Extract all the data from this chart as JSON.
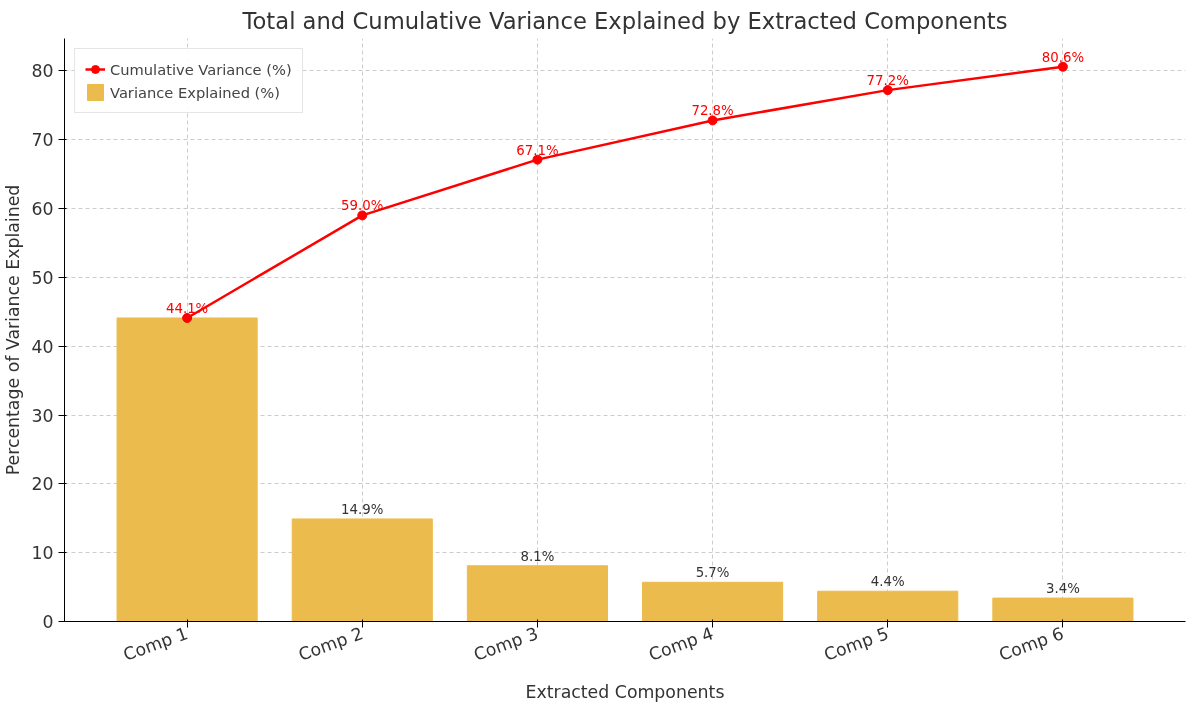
{
  "chart_data": {
    "type": "bar",
    "title": "Total and Cumulative Variance Explained by Extracted Components",
    "xlabel": "Extracted Components",
    "ylabel": "Percentage of Variance Explained",
    "categories": [
      "Comp 1",
      "Comp 2",
      "Comp 3",
      "Comp 4",
      "Comp 5",
      "Comp 6"
    ],
    "series": [
      {
        "name": "Variance Explained (%)",
        "color": "#ecbb4d",
        "values": [
          44.1,
          14.9,
          8.1,
          5.7,
          4.4,
          3.4
        ],
        "value_labels": [
          null,
          "14.9%",
          "8.1%",
          "5.7%",
          "4.4%",
          "3.4%"
        ]
      },
      {
        "name": "Cumulative Variance (%)",
        "type": "line",
        "color": "#ff0000",
        "marker": "circle",
        "line_style": "solid",
        "values": [
          44.1,
          59.0,
          67.1,
          72.8,
          77.2,
          80.6
        ],
        "value_labels": [
          "44.1%",
          "59.0%",
          "67.1%",
          "72.8%",
          "77.2%",
          "80.6%"
        ]
      }
    ],
    "ylim": [
      0,
      84.7
    ],
    "yticks": [
      0,
      10,
      20,
      30,
      40,
      50,
      60,
      70,
      80
    ],
    "grid": true,
    "legend": "top left"
  }
}
